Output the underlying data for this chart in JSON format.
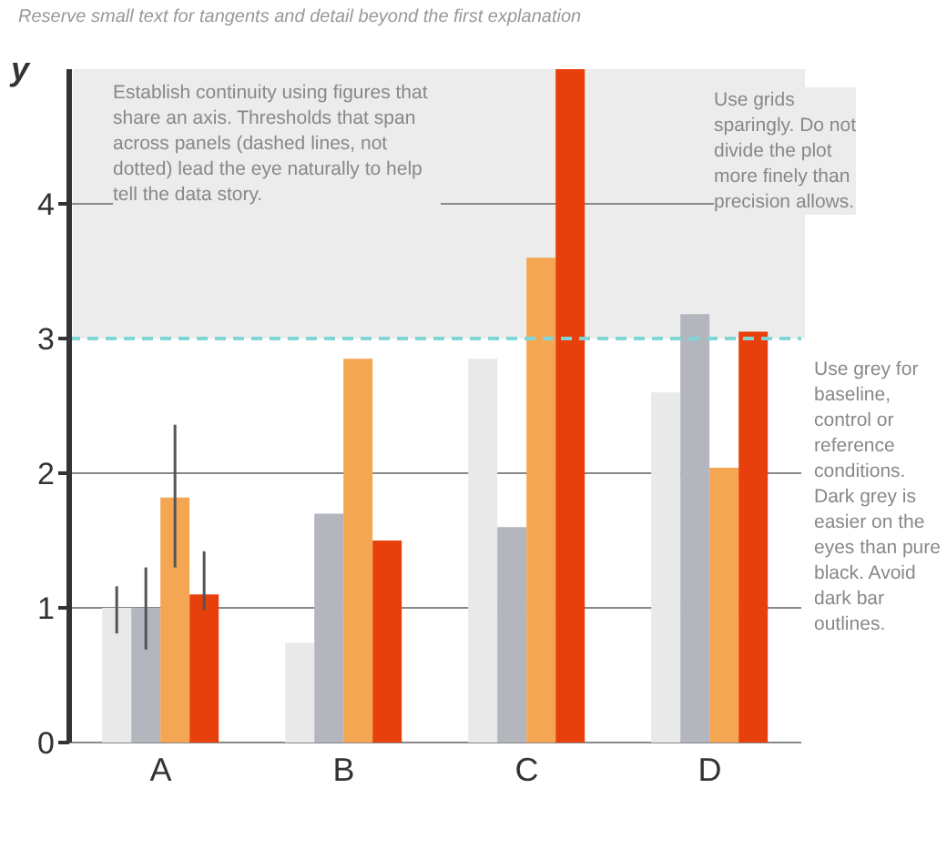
{
  "chart_data": {
    "type": "bar",
    "subtitle": "Reserve small text for tangents and detail beyond the first explanation",
    "ylabel": "y",
    "categories": [
      "A",
      "B",
      "C",
      "D"
    ],
    "series": [
      {
        "color": "#e9e9e9",
        "values": [
          1.0,
          0.74,
          2.85,
          2.6
        ],
        "errors": [
          [
            0.81,
            1.16
          ],
          null,
          null,
          null
        ]
      },
      {
        "color": "#b3b6bd",
        "values": [
          1.0,
          1.7,
          1.6,
          3.18
        ],
        "errors": [
          [
            0.69,
            1.3
          ],
          null,
          null,
          null
        ]
      },
      {
        "color": "#f5a653",
        "values": [
          1.82,
          2.85,
          3.6,
          2.04
        ],
        "errors": [
          [
            1.3,
            2.36
          ],
          null,
          null,
          null
        ]
      },
      {
        "color": "#e8400c",
        "values": [
          1.1,
          1.5,
          5.0,
          3.05
        ],
        "errors": [
          [
            0.98,
            1.42
          ],
          null,
          null,
          null
        ]
      }
    ],
    "ylim": [
      0,
      5
    ],
    "yticks": [
      0,
      1,
      2,
      3,
      4
    ],
    "grid": "y",
    "ref_lines": [
      {
        "axis": "y",
        "value": 3,
        "color": "#7fd6d6",
        "line_style": "dashed"
      }
    ],
    "annotations": [
      "Establish continuity using figures that share an axis. Thresholds that span across panels (dashed lines, not dotted) lead the eye naturally to help tell the data story.",
      "Use grids sparingly. Do not divide the plot more finely than precision allows.",
      "Use grey for baseline, control or reference conditions. Dark grey is easier on the eyes than pure black. Avoid dark bar outlines."
    ]
  }
}
